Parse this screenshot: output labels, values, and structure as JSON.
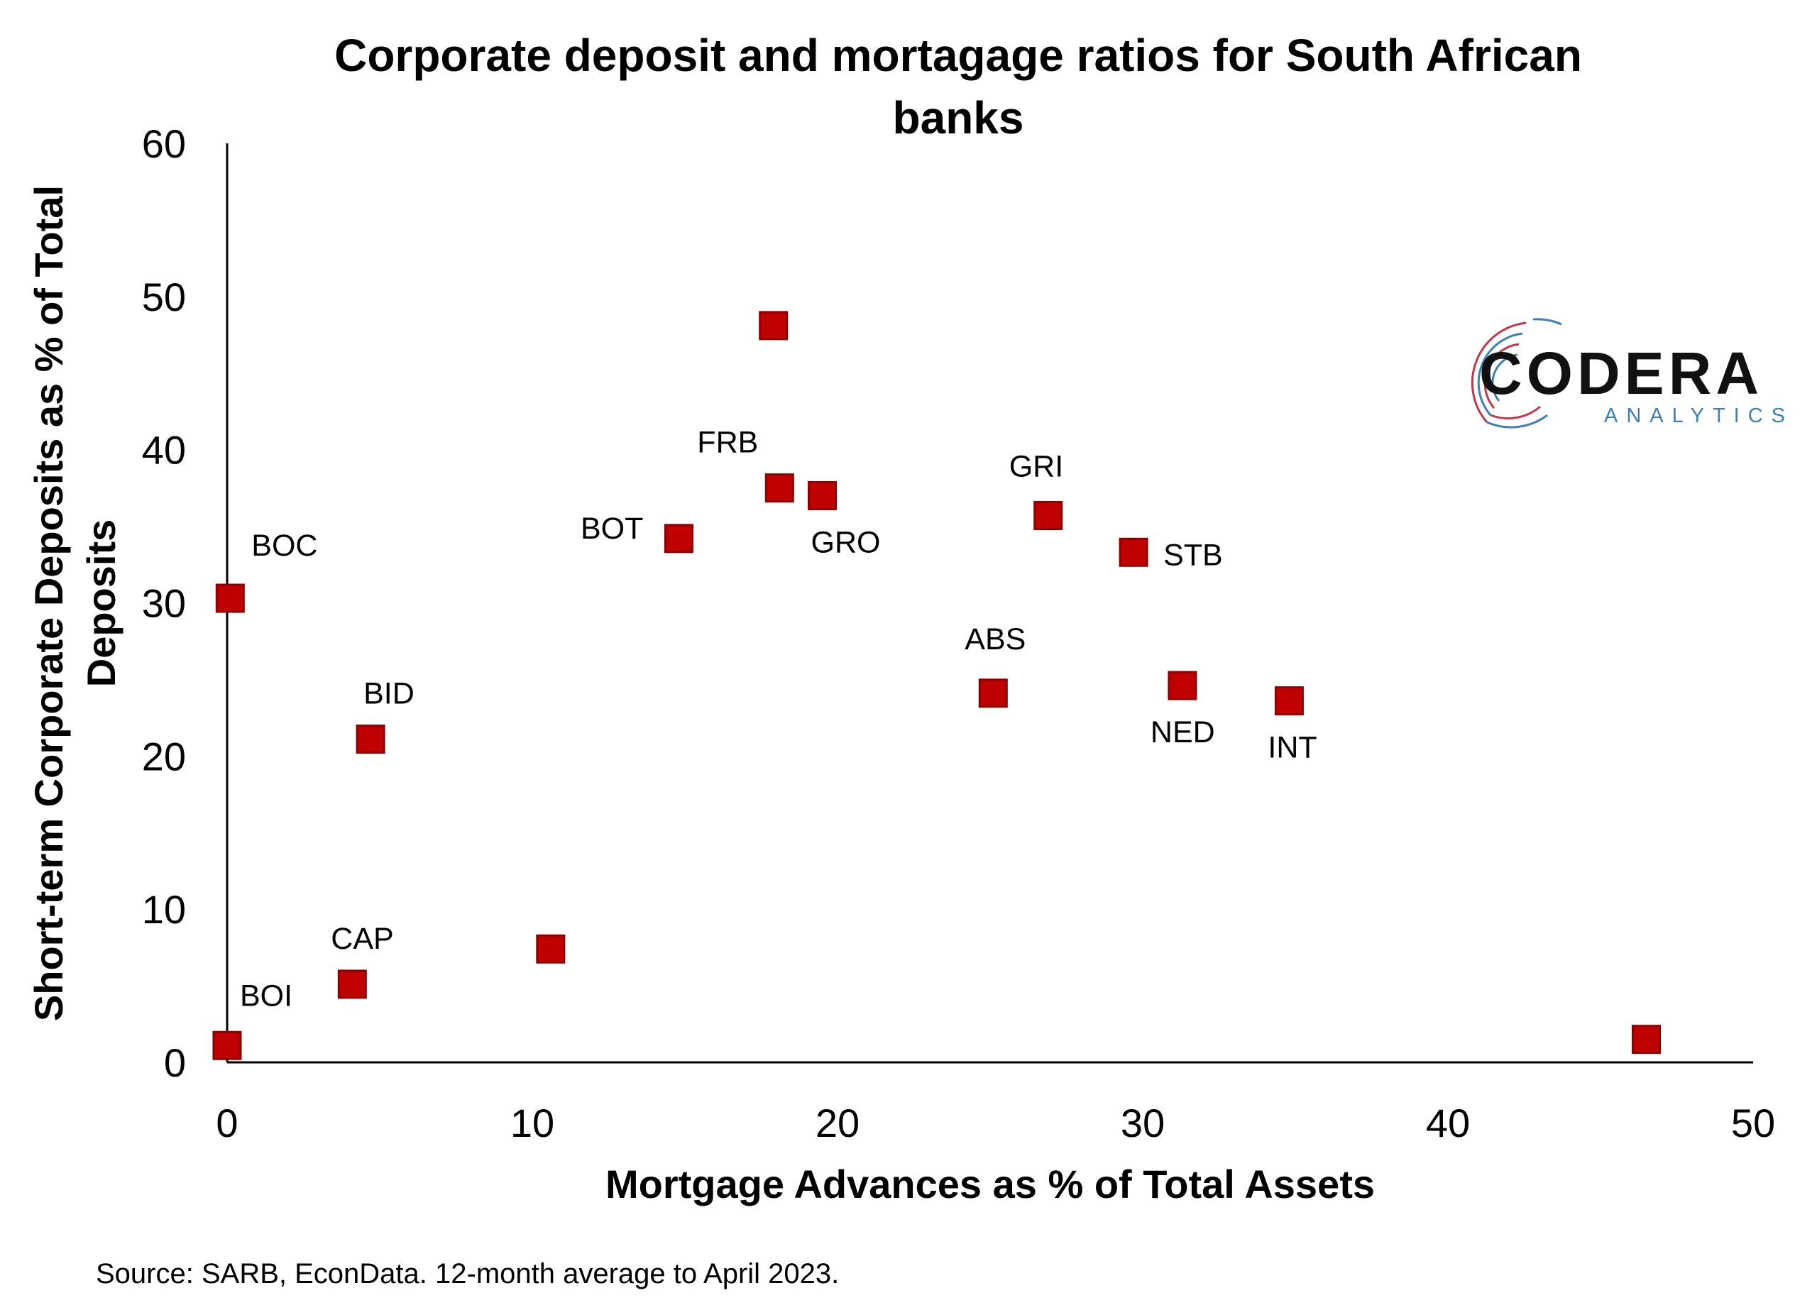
{
  "chart_data": {
    "type": "scatter",
    "title": "Corporate deposit and mortagage ratios for South African banks",
    "xlabel": "Mortgage Advances as % of Total Assets",
    "ylabel": "Short-term Corporate Deposits as % of Total Deposits",
    "xlim": [
      0,
      50
    ],
    "ylim": [
      0,
      60
    ],
    "x_ticks": [
      "0",
      "10",
      "20",
      "30",
      "40",
      "50"
    ],
    "y_ticks": [
      "0",
      "10",
      "20",
      "30",
      "40",
      "50",
      "60"
    ],
    "grid": false,
    "marker": "square",
    "marker_color": "#c00000",
    "points": [
      {
        "label": "BOC",
        "x": 0.1,
        "y": 30.3
      },
      {
        "label": "BOI",
        "x": 0.0,
        "y": 1.1
      },
      {
        "label": "CAP",
        "x": 4.1,
        "y": 5.1
      },
      {
        "label": "BID",
        "x": 4.7,
        "y": 21.1
      },
      {
        "label": "",
        "x": 10.6,
        "y": 7.4
      },
      {
        "label": "BOT",
        "x": 14.8,
        "y": 34.2
      },
      {
        "label": "",
        "x": 17.9,
        "y": 48.1
      },
      {
        "label": "FRB",
        "x": 18.1,
        "y": 37.5
      },
      {
        "label": "GRO",
        "x": 19.5,
        "y": 37.0
      },
      {
        "label": "ABS",
        "x": 25.1,
        "y": 24.1
      },
      {
        "label": "GRI",
        "x": 26.9,
        "y": 35.7
      },
      {
        "label": "STB",
        "x": 29.7,
        "y": 33.3
      },
      {
        "label": "NED",
        "x": 31.3,
        "y": 24.6
      },
      {
        "label": "INT",
        "x": 34.8,
        "y": 23.6
      },
      {
        "label": "",
        "x": 46.5,
        "y": 1.5
      }
    ]
  },
  "source_note": "Source: SARB, EconData. 12-month average to April 2023.",
  "logo": {
    "main": "CODERA",
    "sub": "ANALYTICS",
    "accent_colors": [
      "#c0394b",
      "#3f7fb7"
    ]
  }
}
